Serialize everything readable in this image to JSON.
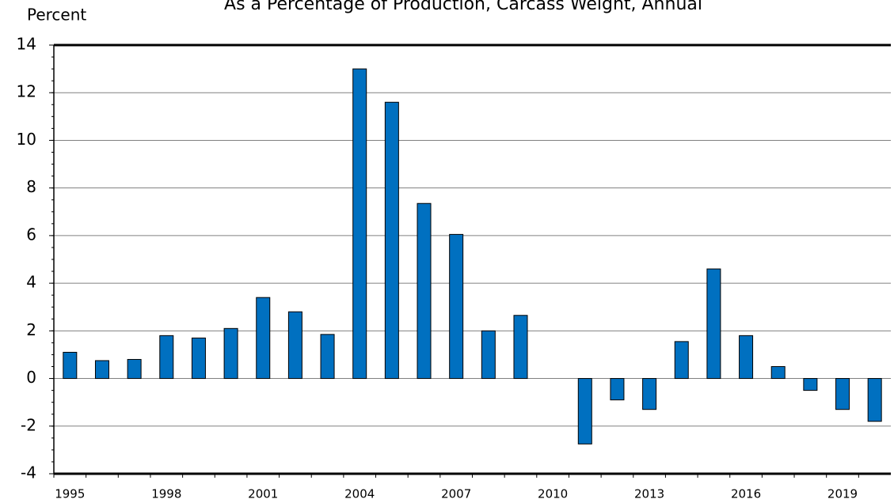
{
  "chart_data": {
    "type": "bar",
    "title": "As a Percentage of Production, Carcass Weight, Annual",
    "y_label": "Percent",
    "categories": [
      "1995",
      null,
      null,
      "1998",
      null,
      null,
      "2001",
      null,
      null,
      "2004",
      null,
      null,
      "2007",
      null,
      null,
      "2010",
      null,
      null,
      "2013",
      null,
      null,
      "2016",
      null,
      null,
      "2019",
      null
    ],
    "values": [
      1.1,
      0.75,
      0.8,
      1.8,
      1.7,
      2.1,
      3.4,
      2.8,
      1.85,
      13.0,
      11.6,
      7.35,
      6.05,
      2.0,
      2.65,
      0.0,
      -2.75,
      -0.9,
      -1.3,
      1.55,
      4.6,
      1.8,
      0.5,
      -0.5,
      -1.3,
      -1.8
    ],
    "color": "#0070c0",
    "ylim": [
      -4,
      14
    ],
    "yticks": [
      -4,
      -2,
      0,
      2,
      4,
      6,
      8,
      10,
      12,
      14
    ],
    "grid": true
  }
}
